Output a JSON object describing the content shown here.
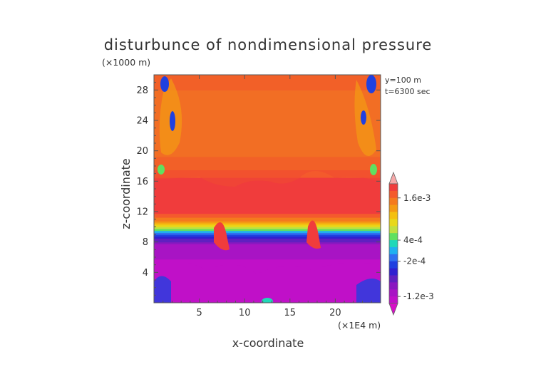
{
  "chart_data": {
    "type": "heatmap",
    "title": "disturbunce of nondimensional pressure",
    "ylabel": "z-coordinate",
    "xlabel": "x-coordinate",
    "y_unit": "(×1000 m)",
    "x_unit": "(×1E4 m)",
    "annotations": [
      "y=100 m",
      "t=6300 sec"
    ],
    "xlim": [
      0,
      25
    ],
    "ylim": [
      0,
      30
    ],
    "x_ticks": [
      5,
      10,
      15,
      20
    ],
    "x_tick_labels": [
      "5",
      "10",
      "15",
      "20"
    ],
    "y_ticks": [
      4,
      8,
      12,
      16,
      20,
      24,
      28
    ],
    "y_tick_labels": [
      "4",
      "8",
      "12",
      "16",
      "20",
      "24",
      "28"
    ],
    "colorbar_labels": [
      "1.6e-3",
      "4e-4",
      "-2e-4",
      "-1.2e-3"
    ],
    "colorbar_label_levels": [
      0.0016,
      0.0004,
      -0.0002,
      -0.0012
    ],
    "colorbar_levels": [
      0.002,
      0.0018,
      0.0016,
      0.0014,
      0.0012,
      0.001,
      0.0008,
      0.0006,
      0.0004,
      0.0002,
      0,
      -0.0002,
      -0.0004,
      -0.0006,
      -0.0008,
      -0.001,
      -0.0012,
      -0.0014,
      -0.0016
    ],
    "colorbar_colors": [
      "#f6a8a8",
      "#f03c3c",
      "#f45a2c",
      "#f47a1e",
      "#f49a14",
      "#f4c010",
      "#e8d81a",
      "#c0e040",
      "#60e060",
      "#20d8b8",
      "#20b0f0",
      "#3070f0",
      "#2040e0",
      "#3020d0",
      "#6020c0",
      "#8a18c0",
      "#a814c4",
      "#c010c8",
      "#d810c8"
    ],
    "grid": false,
    "legend": "colorbar-right",
    "z_profile": [
      {
        "z": 0,
        "value": -0.0014
      },
      {
        "z": 4,
        "value": -0.0013
      },
      {
        "z": 7.5,
        "value": -0.0011
      },
      {
        "z": 8.5,
        "value": -0.0006
      },
      {
        "z": 9.2,
        "value": 0
      },
      {
        "z": 10,
        "value": 0.0008
      },
      {
        "z": 11,
        "value": 0.0015
      },
      {
        "z": 12,
        "value": 0.0019
      },
      {
        "z": 16,
        "value": 0.0019
      },
      {
        "z": 18,
        "value": 0.0015
      },
      {
        "z": 22,
        "value": 0.0012
      },
      {
        "z": 26,
        "value": 0.0013
      },
      {
        "z": 30,
        "value": 0.0015
      }
    ]
  }
}
